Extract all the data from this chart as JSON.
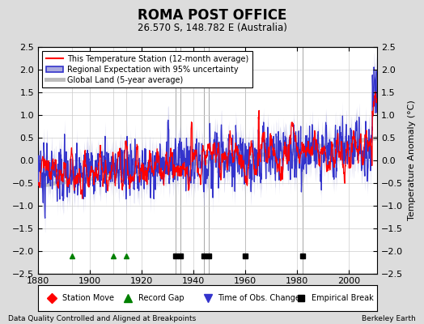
{
  "title": "ROMA POST OFFICE",
  "subtitle": "26.570 S, 148.782 E (Australia)",
  "ylabel_right": "Temperature Anomaly (°C)",
  "footer_left": "Data Quality Controlled and Aligned at Breakpoints",
  "footer_right": "Berkeley Earth",
  "ylim": [
    -2.5,
    2.5
  ],
  "xlim": [
    1880,
    2011
  ],
  "yticks": [
    -2.5,
    -2,
    -1.5,
    -1,
    -0.5,
    0,
    0.5,
    1,
    1.5,
    2,
    2.5
  ],
  "xticks": [
    1880,
    1900,
    1920,
    1940,
    1960,
    1980,
    2000
  ],
  "bg_color": "#dcdcdc",
  "plot_bg_color": "#ffffff",
  "record_gaps": [
    1893,
    1909,
    1914
  ],
  "empirical_breaks": [
    1933,
    1935,
    1944,
    1946,
    1960,
    1982
  ],
  "seed": 12345
}
